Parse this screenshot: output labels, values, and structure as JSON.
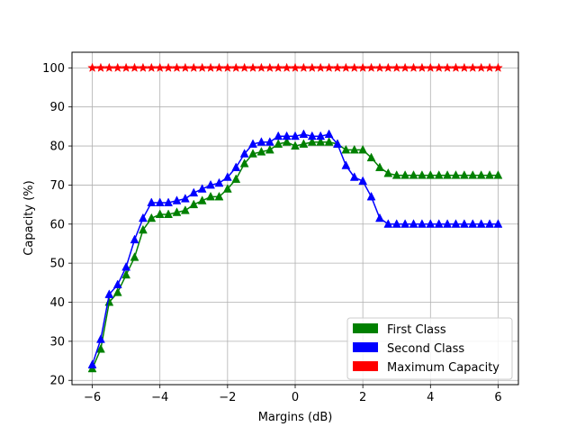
{
  "chart_data": {
    "type": "line",
    "title": "",
    "xlabel": "Margins (dB)",
    "ylabel": "Capacity (%)",
    "xlim": [
      -6.6,
      6.6
    ],
    "ylim": [
      18.9,
      104.0
    ],
    "grid": true,
    "xticks": [
      -6,
      -4,
      -2,
      0,
      2,
      4,
      6
    ],
    "xtick_labels": [
      "−6",
      "−4",
      "−2",
      "0",
      "2",
      "4",
      "6"
    ],
    "yticks": [
      20,
      30,
      40,
      50,
      60,
      70,
      80,
      90,
      100
    ],
    "ytick_labels": [
      "20",
      "30",
      "40",
      "50",
      "60",
      "70",
      "80",
      "90",
      "100"
    ],
    "legend_position": "lower-right",
    "x": [
      -6.0,
      -5.75,
      -5.5,
      -5.25,
      -5.0,
      -4.75,
      -4.5,
      -4.25,
      -4.0,
      -3.75,
      -3.5,
      -3.25,
      -3.0,
      -2.75,
      -2.5,
      -2.25,
      -2.0,
      -1.75,
      -1.5,
      -1.25,
      -1.0,
      -0.75,
      -0.5,
      -0.25,
      0.0,
      0.25,
      0.5,
      0.75,
      1.0,
      1.25,
      1.5,
      1.75,
      2.0,
      2.25,
      2.5,
      2.75,
      3.0,
      3.25,
      3.5,
      3.75,
      4.0,
      4.25,
      4.5,
      4.75,
      5.0,
      5.25,
      5.5,
      5.75,
      6.0
    ],
    "series": [
      {
        "name": "Maximum Capacity",
        "color": "#ff0000",
        "marker": "star",
        "values": [
          100,
          100,
          100,
          100,
          100,
          100,
          100,
          100,
          100,
          100,
          100,
          100,
          100,
          100,
          100,
          100,
          100,
          100,
          100,
          100,
          100,
          100,
          100,
          100,
          100,
          100,
          100,
          100,
          100,
          100,
          100,
          100,
          100,
          100,
          100,
          100,
          100,
          100,
          100,
          100,
          100,
          100,
          100,
          100,
          100,
          100,
          100,
          100,
          100
        ]
      },
      {
        "name": "First Class",
        "color": "#008000",
        "marker": "triangle",
        "values": [
          23,
          28,
          40,
          42.5,
          47,
          51.5,
          58.5,
          61.5,
          62.5,
          62.5,
          63,
          63.5,
          65,
          66,
          67,
          67,
          69,
          71.5,
          75.5,
          78,
          78.5,
          79,
          80.5,
          81,
          80,
          80.5,
          81,
          81,
          81,
          80.5,
          79,
          79,
          79,
          77,
          74.5,
          73,
          72.5,
          72.5,
          72.5,
          72.5,
          72.5,
          72.5,
          72.5,
          72.5,
          72.5,
          72.5,
          72.5,
          72.5,
          72.5
        ]
      },
      {
        "name": "Second Class",
        "color": "#0000ff",
        "marker": "triangle",
        "values": [
          24,
          30.5,
          42,
          44.5,
          49,
          56,
          61.5,
          65.5,
          65.5,
          65.5,
          66,
          66.5,
          68,
          69,
          70,
          70.5,
          72,
          74.5,
          78,
          80.5,
          81,
          81,
          82.5,
          82.5,
          82.5,
          83,
          82.5,
          82.5,
          83,
          80.5,
          75,
          72,
          71,
          67,
          61.5,
          60,
          60,
          60,
          60,
          60,
          60,
          60,
          60,
          60,
          60,
          60,
          60,
          60,
          60
        ]
      }
    ]
  },
  "legend": {
    "items": [
      {
        "label": "First Class",
        "color": "#008000"
      },
      {
        "label": "Second Class",
        "color": "#0000ff"
      },
      {
        "label": "Maximum Capacity",
        "color": "#ff0000"
      }
    ]
  }
}
